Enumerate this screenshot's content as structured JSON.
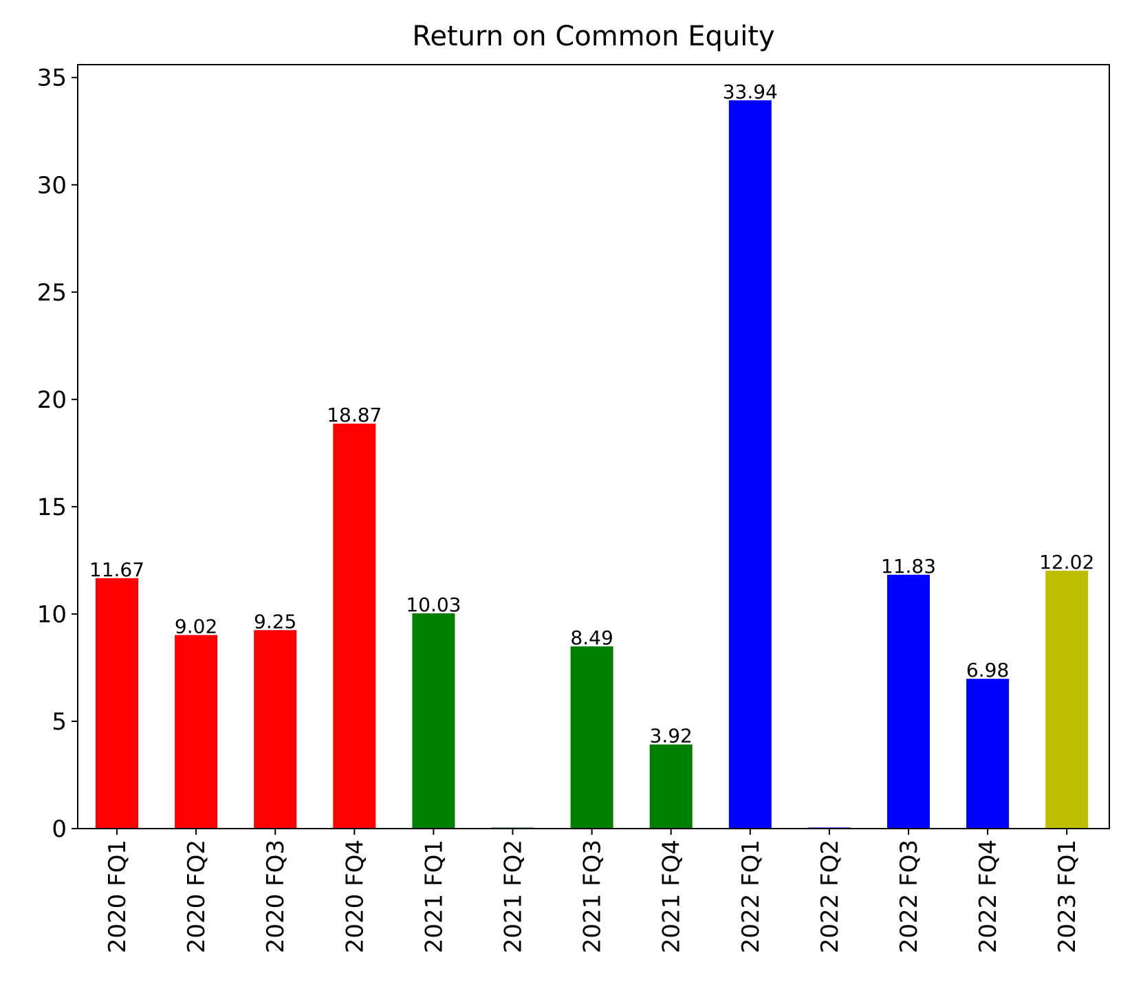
{
  "chart_data": {
    "type": "bar",
    "title": "Return on Common Equity",
    "xlabel": "",
    "ylabel": "",
    "categories": [
      "2020 FQ1",
      "2020 FQ2",
      "2020 FQ3",
      "2020 FQ4",
      "2021 FQ1",
      "2021 FQ2",
      "2021 FQ3",
      "2021 FQ4",
      "2022 FQ1",
      "2022 FQ2",
      "2022 FQ3",
      "2022 FQ4",
      "2023 FQ1"
    ],
    "values": [
      11.67,
      9.02,
      9.25,
      18.87,
      10.03,
      0.05,
      8.49,
      3.92,
      33.94,
      0.05,
      11.83,
      6.98,
      12.02
    ],
    "value_labels": [
      "11.67",
      "9.02",
      "9.25",
      "18.87",
      "10.03",
      "",
      "8.49",
      "3.92",
      "33.94",
      "",
      "11.83",
      "6.98",
      "12.02"
    ],
    "colors": [
      "#ff0000",
      "#ff0000",
      "#ff0000",
      "#ff0000",
      "#008000",
      "#008000",
      "#008000",
      "#008000",
      "#0000ff",
      "#0000ff",
      "#0000ff",
      "#0000ff",
      "#bfbf00"
    ],
    "ylim": [
      0,
      35.6
    ],
    "yticks": [
      0,
      5,
      10,
      15,
      20,
      25,
      30,
      35
    ],
    "grid": false,
    "legend": "none"
  }
}
